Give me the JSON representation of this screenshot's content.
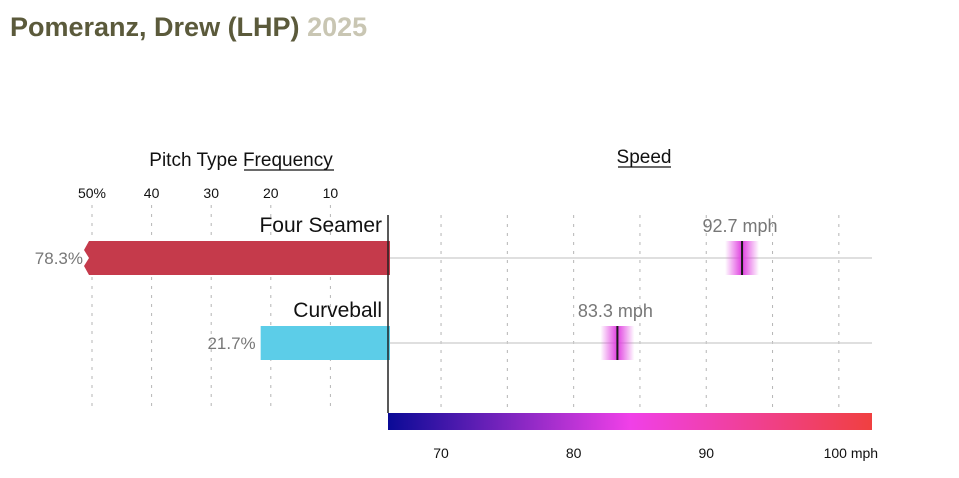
{
  "header": {
    "player": "Pomeranz, Drew (LHP)",
    "year": "2025"
  },
  "colors": {
    "player_name": "#5b5a3b",
    "year": "#c9c6b3",
    "four_seamer_bar": "#c53a4b",
    "curveball_bar": "#5ccde8",
    "speed_marker": "#e040e0",
    "speed_scale_start": "#0a0a96",
    "speed_scale_mid": "#f040e8",
    "speed_scale_end": "#f04040"
  },
  "chart_data": [
    {
      "type": "bar",
      "title_prefix": "Pitch Type",
      "title_emphasis": "Frequency",
      "x_tick_labels": [
        "50%",
        "40",
        "30",
        "20",
        "10"
      ],
      "x_ticks": [
        50,
        40,
        30,
        20,
        10
      ],
      "xlim": [
        0,
        50
      ],
      "categories": [
        "Four Seamer",
        "Curveball"
      ],
      "values": [
        78.3,
        21.7
      ],
      "value_labels": [
        "78.3%",
        "21.7%"
      ],
      "orientation": "horizontal-left"
    },
    {
      "type": "scatter",
      "title": "Speed",
      "categories": [
        "Four Seamer",
        "Curveball"
      ],
      "values": [
        92.7,
        83.3
      ],
      "value_labels": [
        "92.7 mph",
        "83.3 mph"
      ],
      "x_ticks": [
        70,
        75,
        80,
        85,
        90,
        95,
        100
      ],
      "x_tick_labels": [
        "70",
        "80",
        "90",
        "100 mph"
      ],
      "x_tick_label_values": [
        70,
        80,
        90,
        100
      ],
      "xlim": [
        66,
        102.5
      ],
      "unit": "mph"
    }
  ]
}
